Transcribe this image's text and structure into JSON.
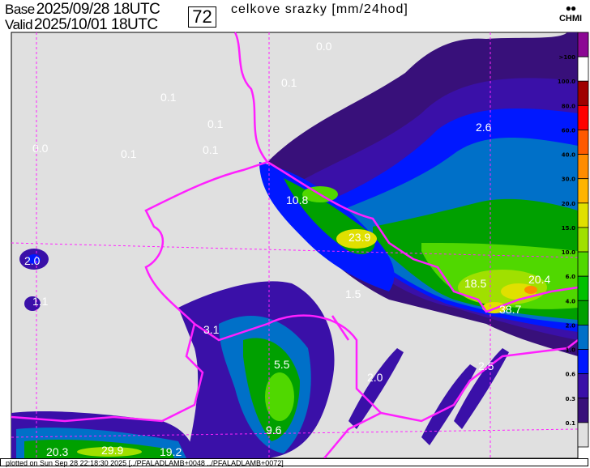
{
  "header": {
    "base_label": "Base",
    "base_value": "2025/09/28 18UTC",
    "valid_label": "Valid",
    "valid_value": "2025/10/01 18UTC",
    "forecast_hour": "72",
    "title": "celkove srazky [mm/24hod]",
    "logo_text": "CHMI"
  },
  "legend": {
    "levels": [
      ">100",
      "100.0",
      "80.0",
      "60.0",
      "40.0",
      "30.0",
      "20.0",
      "15.0",
      "10.0",
      "6.0",
      "4.0",
      "2.0",
      "1.0",
      "0.6",
      "0.3",
      "0.1"
    ],
    "colors": [
      "#8c0894",
      "#ffffff",
      "#a00000",
      "#ff0000",
      "#ff5a00",
      "#ff8c00",
      "#ffb400",
      "#e0e000",
      "#a0e000",
      "#50d800",
      "#00c000",
      "#00a000",
      "#0070c8",
      "#0018ff",
      "#3a10a8",
      "#38107a",
      "#e0e0e0"
    ]
  },
  "map": {
    "background": "#e0e0e0",
    "border_color": "#ff20ff",
    "value_labels": [
      {
        "text": "0.0"
      },
      {
        "text": "0.1"
      },
      {
        "text": "0.1"
      },
      {
        "text": "0.1"
      },
      {
        "text": "0.0"
      },
      {
        "text": "0.1"
      },
      {
        "text": "0.1"
      },
      {
        "text": "2.6"
      },
      {
        "text": "10.8"
      },
      {
        "text": "23.9"
      },
      {
        "text": "2.0"
      },
      {
        "text": "1.1"
      },
      {
        "text": "1.5"
      },
      {
        "text": "18.5"
      },
      {
        "text": "20.4"
      },
      {
        "text": "38.7"
      },
      {
        "text": "3.1"
      },
      {
        "text": "5.5"
      },
      {
        "text": "2.0"
      },
      {
        "text": "2.5"
      },
      {
        "text": "9.6"
      },
      {
        "text": "20.3"
      },
      {
        "text": "29.9"
      },
      {
        "text": "19.2"
      }
    ]
  },
  "footer": {
    "text": "plotted on Sun Sep 28 22:18:30 2025 [../PFALADLAMB+0048 ../PFALADLAMB+0072]"
  }
}
